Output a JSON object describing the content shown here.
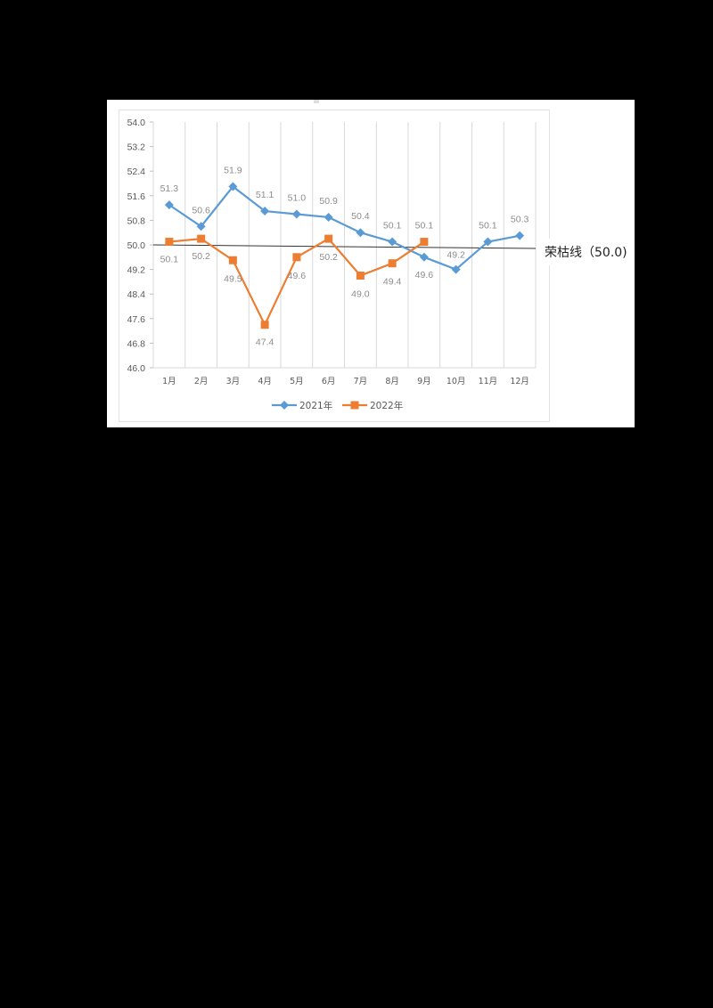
{
  "chart_data": {
    "type": "line",
    "title": "",
    "xlabel": "",
    "ylabel": "",
    "categories": [
      "1月",
      "2月",
      "3月",
      "4月",
      "5月",
      "6月",
      "7月",
      "8月",
      "9月",
      "10月",
      "11月",
      "12月"
    ],
    "series": [
      {
        "name": "2021年",
        "color": "#5b9bd5",
        "marker": "diamond",
        "values": [
          51.3,
          50.6,
          51.9,
          51.1,
          51.0,
          50.9,
          50.4,
          50.1,
          49.6,
          49.2,
          50.1,
          50.3
        ]
      },
      {
        "name": "2022年",
        "color": "#ed7d31",
        "marker": "square",
        "values": [
          50.1,
          50.2,
          49.5,
          47.4,
          49.6,
          50.2,
          49.0,
          49.4,
          50.1,
          null,
          null,
          null
        ]
      }
    ],
    "ylim": [
      46.0,
      54.0
    ],
    "yticks": [
      "54.0",
      "53.2",
      "52.4",
      "51.6",
      "50.8",
      "50.0",
      "49.2",
      "48.4",
      "47.6",
      "46.8",
      "46.0"
    ],
    "grid": {
      "vertical": true,
      "horizontal": false
    },
    "legend_position": "bottom",
    "annotations": [
      {
        "type": "reference_line",
        "value": 50.0,
        "label": "荣枯线（50.0)"
      }
    ]
  },
  "legend": {
    "items": [
      "2021年",
      "2022年"
    ]
  },
  "reference_line": {
    "label": "荣枯线（50.0)"
  }
}
